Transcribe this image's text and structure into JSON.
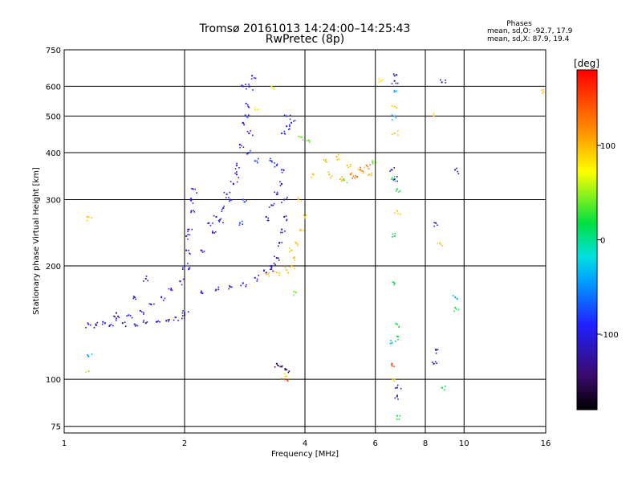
{
  "chart_data": {
    "type": "scatter",
    "title": "Tromsø 20161013 14:24:00–14:25:43",
    "subtitle": "RwPretec (8p)",
    "xlabel": "Frequency [MHz]",
    "ylabel": "Stationary phase Virtual Height [km]",
    "x_scale": "log",
    "y_scale": "log",
    "xlim": [
      1,
      16
    ],
    "ylim": [
      72,
      750
    ],
    "x_ticks": [
      1,
      2,
      4,
      6,
      8,
      10,
      16
    ],
    "x_tick_labels": [
      "1",
      "2",
      "4",
      "6",
      "8",
      "10",
      "16"
    ],
    "y_ticks": [
      75,
      100,
      200,
      300,
      400,
      500,
      600,
      750
    ],
    "y_tick_labels": [
      "75",
      "100",
      "200",
      "300",
      "400",
      "500",
      "600",
      "750"
    ],
    "grid": true,
    "phases_box": {
      "heading": "Phases",
      "line1": "mean, sd,O: -92.7, 17.9",
      "line2": "mean, sd,X:  87.9, 19.4"
    },
    "colorbar": {
      "unit_label": "[deg]",
      "range": [
        -180,
        180
      ],
      "tick_values": [
        100,
        0,
        -100
      ],
      "tick_labels": [
        "100",
        "0",
        "-100"
      ]
    },
    "traces": [
      {
        "phase": -100,
        "points": [
          [
            1.15,
            140
          ],
          [
            1.25,
            142
          ],
          [
            1.35,
            145
          ],
          [
            1.45,
            148
          ],
          [
            1.55,
            152
          ],
          [
            1.65,
            158
          ],
          [
            1.75,
            165
          ],
          [
            1.85,
            173
          ],
          [
            1.95,
            182
          ],
          [
            2.05,
            196
          ],
          [
            1.3,
            139
          ],
          [
            1.5,
            140
          ],
          [
            1.7,
            142
          ],
          [
            1.9,
            146
          ],
          [
            2.0,
            150
          ]
        ]
      },
      {
        "phase": -130,
        "points": [
          [
            1.2,
            140
          ],
          [
            1.4,
            141
          ],
          [
            1.6,
            141
          ],
          [
            1.8,
            143
          ],
          [
            2.0,
            148
          ],
          [
            1.35,
            150
          ],
          [
            1.5,
            165
          ],
          [
            1.6,
            185
          ]
        ]
      },
      {
        "phase": -100,
        "points": [
          [
            2.0,
            200
          ],
          [
            2.02,
            220
          ],
          [
            2.05,
            250
          ],
          [
            2.08,
            280
          ],
          [
            2.1,
            320
          ],
          [
            2.02,
            240
          ],
          [
            2.07,
            300
          ]
        ]
      },
      {
        "phase": -110,
        "points": [
          [
            2.2,
            170
          ],
          [
            2.4,
            173
          ],
          [
            2.6,
            176
          ],
          [
            2.8,
            180
          ],
          [
            3.0,
            186
          ],
          [
            3.2,
            192
          ],
          [
            3.3,
            198
          ]
        ]
      },
      {
        "phase": -100,
        "points": [
          [
            2.3,
            260
          ],
          [
            2.4,
            270
          ],
          [
            2.5,
            285
          ],
          [
            2.6,
            300
          ],
          [
            2.65,
            330
          ],
          [
            2.7,
            370
          ],
          [
            2.75,
            420
          ],
          [
            2.8,
            480
          ],
          [
            2.85,
            540
          ],
          [
            2.9,
            600
          ],
          [
            2.95,
            640
          ],
          [
            2.8,
            600
          ]
        ]
      },
      {
        "phase": -105,
        "points": [
          [
            2.2,
            220
          ],
          [
            2.35,
            245
          ],
          [
            2.45,
            265
          ],
          [
            2.55,
            310
          ],
          [
            2.7,
            350
          ],
          [
            2.9,
            450
          ]
        ]
      },
      {
        "phase": -80,
        "points": [
          [
            2.75,
            260
          ],
          [
            2.8,
            300
          ],
          [
            2.9,
            400
          ],
          [
            2.85,
            500
          ],
          [
            3.0,
            380
          ]
        ]
      },
      {
        "phase": -90,
        "points": [
          [
            3.5,
            450
          ],
          [
            3.6,
            470
          ],
          [
            3.7,
            480
          ],
          [
            3.6,
            500
          ],
          [
            3.3,
            380
          ],
          [
            3.4,
            370
          ],
          [
            3.5,
            360
          ]
        ]
      },
      {
        "phase": -115,
        "points": [
          [
            3.2,
            270
          ],
          [
            3.3,
            290
          ],
          [
            3.4,
            310
          ],
          [
            3.5,
            330
          ],
          [
            3.55,
            300
          ]
        ]
      },
      {
        "phase": -125,
        "points": [
          [
            3.3,
            200
          ],
          [
            3.4,
            210
          ],
          [
            3.45,
            230
          ],
          [
            3.5,
            250
          ],
          [
            3.55,
            270
          ]
        ]
      },
      {
        "phase": 95,
        "points": [
          [
            3.2,
            190
          ],
          [
            3.4,
            192
          ],
          [
            3.6,
            195
          ],
          [
            3.7,
            200
          ],
          [
            3.75,
            210
          ],
          [
            3.8,
            230
          ],
          [
            3.9,
            250
          ],
          [
            4.0,
            270
          ],
          [
            3.85,
            300
          ],
          [
            3.7,
            220
          ]
        ]
      },
      {
        "phase": 100,
        "points": [
          [
            4.2,
            350
          ],
          [
            4.5,
            380
          ],
          [
            4.8,
            390
          ],
          [
            5.1,
            370
          ],
          [
            5.5,
            360
          ],
          [
            5.8,
            350
          ],
          [
            4.6,
            350
          ],
          [
            4.9,
            340
          ]
        ]
      },
      {
        "phase": 130,
        "points": [
          [
            5.2,
            350
          ],
          [
            5.5,
            360
          ],
          [
            5.7,
            370
          ],
          [
            5.4,
            345
          ]
        ]
      },
      {
        "phase": 40,
        "points": [
          [
            3.9,
            440
          ],
          [
            4.1,
            430
          ],
          [
            5.0,
            340
          ],
          [
            5.9,
            380
          ],
          [
            3.8,
            170
          ]
        ]
      },
      {
        "phase": -120,
        "points": [
          [
            6.7,
            640
          ],
          [
            6.7,
            620
          ],
          [
            8.8,
            615
          ],
          [
            6.7,
            340
          ],
          [
            6.6,
            360
          ],
          [
            9.5,
            360
          ],
          [
            8.5,
            260
          ],
          [
            8.5,
            120
          ],
          [
            8.4,
            110
          ],
          [
            6.8,
            95
          ],
          [
            6.8,
            90
          ]
        ]
      },
      {
        "phase": 20,
        "points": [
          [
            6.6,
            340
          ],
          [
            6.8,
            320
          ],
          [
            6.7,
            240
          ],
          [
            6.7,
            180
          ],
          [
            6.8,
            140
          ],
          [
            6.8,
            130
          ],
          [
            6.8,
            80
          ],
          [
            9.5,
            155
          ],
          [
            8.8,
            95
          ]
        ]
      },
      {
        "phase": 95,
        "points": [
          [
            6.7,
            530
          ],
          [
            6.7,
            450
          ],
          [
            6.8,
            280
          ],
          [
            6.7,
            100
          ],
          [
            8.4,
            500
          ],
          [
            8.7,
            230
          ],
          [
            15.8,
            580
          ],
          [
            1.15,
            270
          ]
        ]
      },
      {
        "phase": -40,
        "points": [
          [
            6.7,
            580
          ],
          [
            6.7,
            500
          ],
          [
            9.5,
            165
          ],
          [
            1.15,
            115
          ],
          [
            6.6,
            125
          ]
        ]
      },
      {
        "phase": -150,
        "points": [
          [
            3.4,
            110
          ],
          [
            3.5,
            108
          ],
          [
            3.6,
            106
          ]
        ]
      },
      {
        "phase": 150,
        "points": [
          [
            3.55,
            100
          ],
          [
            6.6,
            110
          ]
        ]
      },
      {
        "phase": 60,
        "points": [
          [
            1.15,
            105
          ],
          [
            3.6,
            102
          ]
        ]
      },
      {
        "phase": 80,
        "points": [
          [
            3.3,
            600
          ],
          [
            3.0,
            520
          ],
          [
            6.2,
            620
          ]
        ]
      }
    ]
  }
}
